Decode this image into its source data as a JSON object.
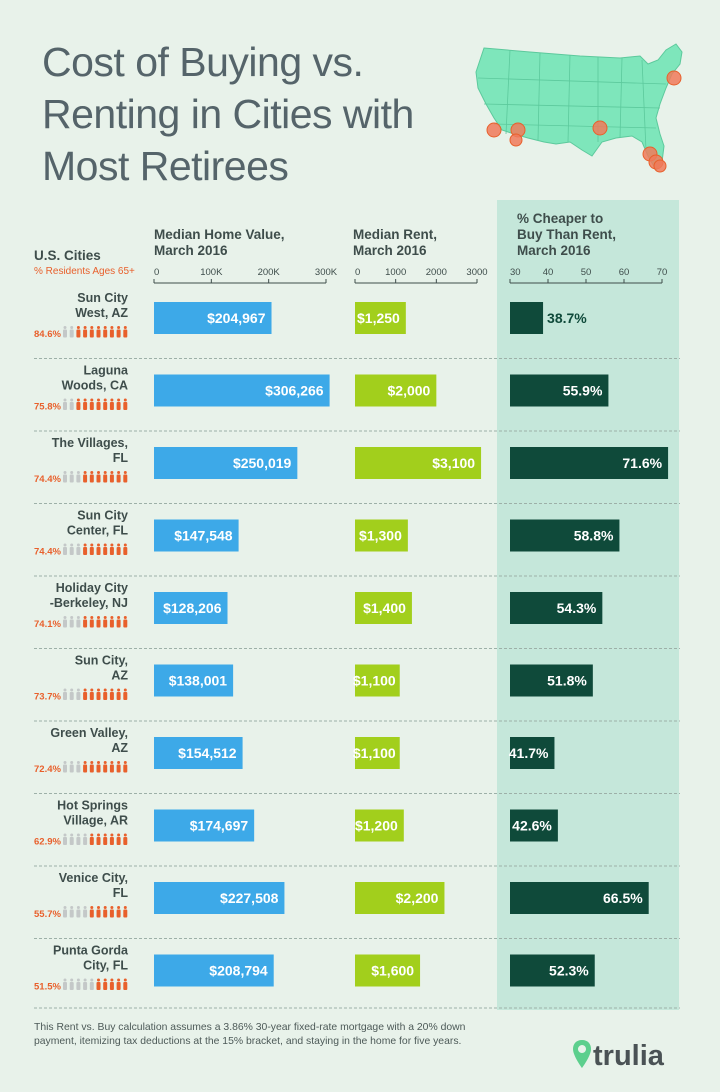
{
  "title_lines": [
    "Cost of Buying vs.",
    "Renting in Cities with",
    "Most Retirees"
  ],
  "headers": {
    "city": "U.S. Cities",
    "residents": "% Residents Ages 65+",
    "home_value": [
      "Median Home Value,",
      "March 2016"
    ],
    "rent": [
      "Median Rent,",
      "March 2016"
    ],
    "cheaper": [
      "% Cheaper to",
      "Buy Than Rent,",
      "March 2016"
    ]
  },
  "footnote": "This Rent vs. Buy calculation assumes a 3.86% 30-year fixed-rate mortgage with a 20% down payment, itemizing tax deductions at the 15% bracket, and staying in the home for five years.",
  "logo_text": "trulia",
  "colors": {
    "home": "#3da9e8",
    "rent": "#a2cf1c",
    "cheaper": "#0f4a3a",
    "cheaper_bg": "#c5e7da",
    "residents": "#e8602c",
    "residents_gray": "#c4c8c8",
    "map": "#7ee6bb"
  },
  "chart_data": [
    {
      "type": "bar",
      "title": "Median Home Value, March 2016",
      "categories": [
        "Sun City West, AZ",
        "Laguna Woods, CA",
        "The Villages, FL",
        "Sun City Center, FL",
        "Holiday City -Berkeley, NJ",
        "Sun City, AZ",
        "Green Valley, AZ",
        "Hot Springs Village, AR",
        "Venice City, FL",
        "Punta Gorda City, FL"
      ],
      "values": [
        204967,
        306266,
        250019,
        147548,
        128206,
        138001,
        154512,
        174697,
        227508,
        208794
      ],
      "labels": [
        "$204,967",
        "$306,266",
        "$250,019",
        "$147,548",
        "$128,206",
        "$138,001",
        "$154,512",
        "$174,697",
        "$227,508",
        "$208,794"
      ],
      "xlim": [
        0,
        300000
      ],
      "ticks": [
        "0",
        "100K",
        "200K",
        "300K"
      ]
    },
    {
      "type": "bar",
      "title": "Median Rent, March 2016",
      "categories": [
        "Sun City West, AZ",
        "Laguna Woods, CA",
        "The Villages, FL",
        "Sun City Center, FL",
        "Holiday City -Berkeley, NJ",
        "Sun City, AZ",
        "Green Valley, AZ",
        "Hot Springs Village, AR",
        "Venice City, FL",
        "Punta Gorda City, FL"
      ],
      "values": [
        1250,
        2000,
        3100,
        1300,
        1400,
        1100,
        1100,
        1200,
        2200,
        1600
      ],
      "labels": [
        "$1,250",
        "$2,000",
        "$3,100",
        "$1,300",
        "$1,400",
        "$1,100",
        "$1,100",
        "$1,200",
        "$2,200",
        "$1,600"
      ],
      "xlim": [
        0,
        3000
      ],
      "ticks": [
        "0",
        "1000",
        "2000",
        "3000"
      ]
    },
    {
      "type": "bar",
      "title": "% Cheaper to Buy Than Rent, March 2016",
      "categories": [
        "Sun City West, AZ",
        "Laguna Woods, CA",
        "The Villages, FL",
        "Sun City Center, FL",
        "Holiday City -Berkeley, NJ",
        "Sun City, AZ",
        "Green Valley, AZ",
        "Hot Springs Village, AR",
        "Venice City, FL",
        "Punta Gorda City, FL"
      ],
      "values": [
        38.7,
        55.9,
        71.6,
        58.8,
        54.3,
        51.8,
        41.7,
        42.6,
        66.5,
        52.3
      ],
      "labels": [
        "38.7%",
        "55.9%",
        "71.6%",
        "58.8%",
        "54.3%",
        "51.8%",
        "41.7%",
        "42.6%",
        "66.5%",
        "52.3%"
      ],
      "xlim": [
        30,
        70
      ],
      "ticks": [
        "30",
        "40",
        "50",
        "60",
        "70"
      ]
    },
    {
      "type": "table",
      "title": "% Residents Ages 65+",
      "categories": [
        "Sun City West, AZ",
        "Laguna Woods, CA",
        "The Villages, FL",
        "Sun City Center, FL",
        "Holiday City -Berkeley, NJ",
        "Sun City, AZ",
        "Green Valley, AZ",
        "Hot Springs Village, AR",
        "Venice City, FL",
        "Punta Gorda City, FL"
      ],
      "values": [
        84.6,
        75.8,
        74.4,
        74.4,
        74.1,
        73.7,
        72.4,
        62.9,
        55.7,
        51.5
      ],
      "labels": [
        "84.6%",
        "75.8%",
        "74.4%",
        "74.4%",
        "74.1%",
        "73.7%",
        "72.4%",
        "62.9%",
        "55.7%",
        "51.5%"
      ]
    }
  ],
  "city_names": [
    [
      "Sun City",
      "West, AZ"
    ],
    [
      "Laguna",
      "Woods, CA"
    ],
    [
      "The Villages,",
      "FL"
    ],
    [
      "Sun City",
      "Center, FL"
    ],
    [
      "Holiday City",
      "-Berkeley, NJ"
    ],
    [
      "Sun City,",
      "AZ"
    ],
    [
      "Green Valley,",
      "AZ"
    ],
    [
      "Hot Springs",
      "Village, AR"
    ],
    [
      "Venice City,",
      "FL"
    ],
    [
      "Punta Gorda",
      "City, FL"
    ]
  ]
}
